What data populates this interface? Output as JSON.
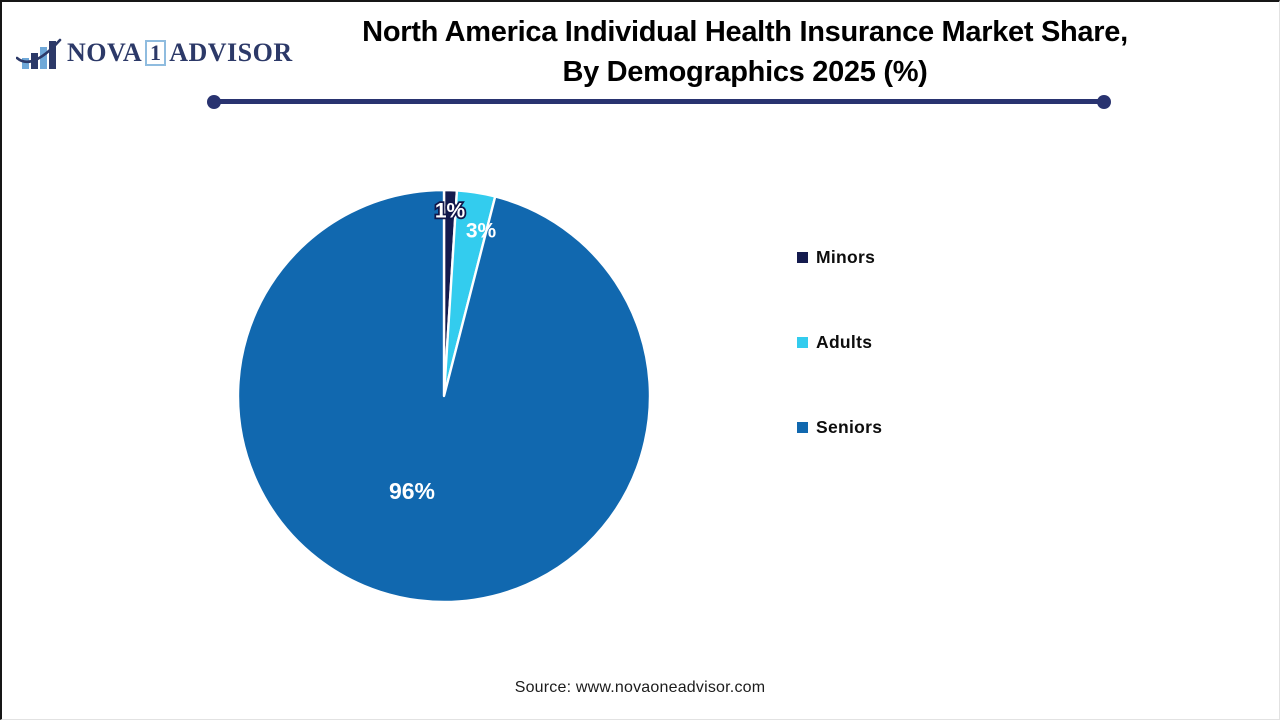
{
  "logo": {
    "name_part1": "NOVA",
    "name_box": "1",
    "name_part2": "ADVISOR",
    "icon": "bar-chart-with-swoosh",
    "brand_navy": "#2c3968",
    "brand_light_blue": "#6fa8d8"
  },
  "title": {
    "line1": "North America Individual Health Insurance Market Share,",
    "line2": "By Demographics 2025 (%)",
    "underline_color": "#293370"
  },
  "chart_data": {
    "type": "pie",
    "title": "North America Individual Health Insurance Market Share, By Demographics 2025 (%)",
    "categories": [
      "Minors",
      "Adults",
      "Seniors"
    ],
    "values": [
      1,
      3,
      96
    ],
    "data_labels": [
      "1%",
      "3%",
      "96%"
    ],
    "colors": [
      "#141B4E",
      "#33CCEE",
      "#1168AF"
    ],
    "start_angle_deg": 0,
    "direction": "clockwise",
    "slice_border_color": "#ffffff",
    "label_text_color": "#ffffff",
    "legend_position": "right",
    "unit": "%"
  },
  "footer": {
    "source": "Source: www.novaoneadvisor.com"
  }
}
